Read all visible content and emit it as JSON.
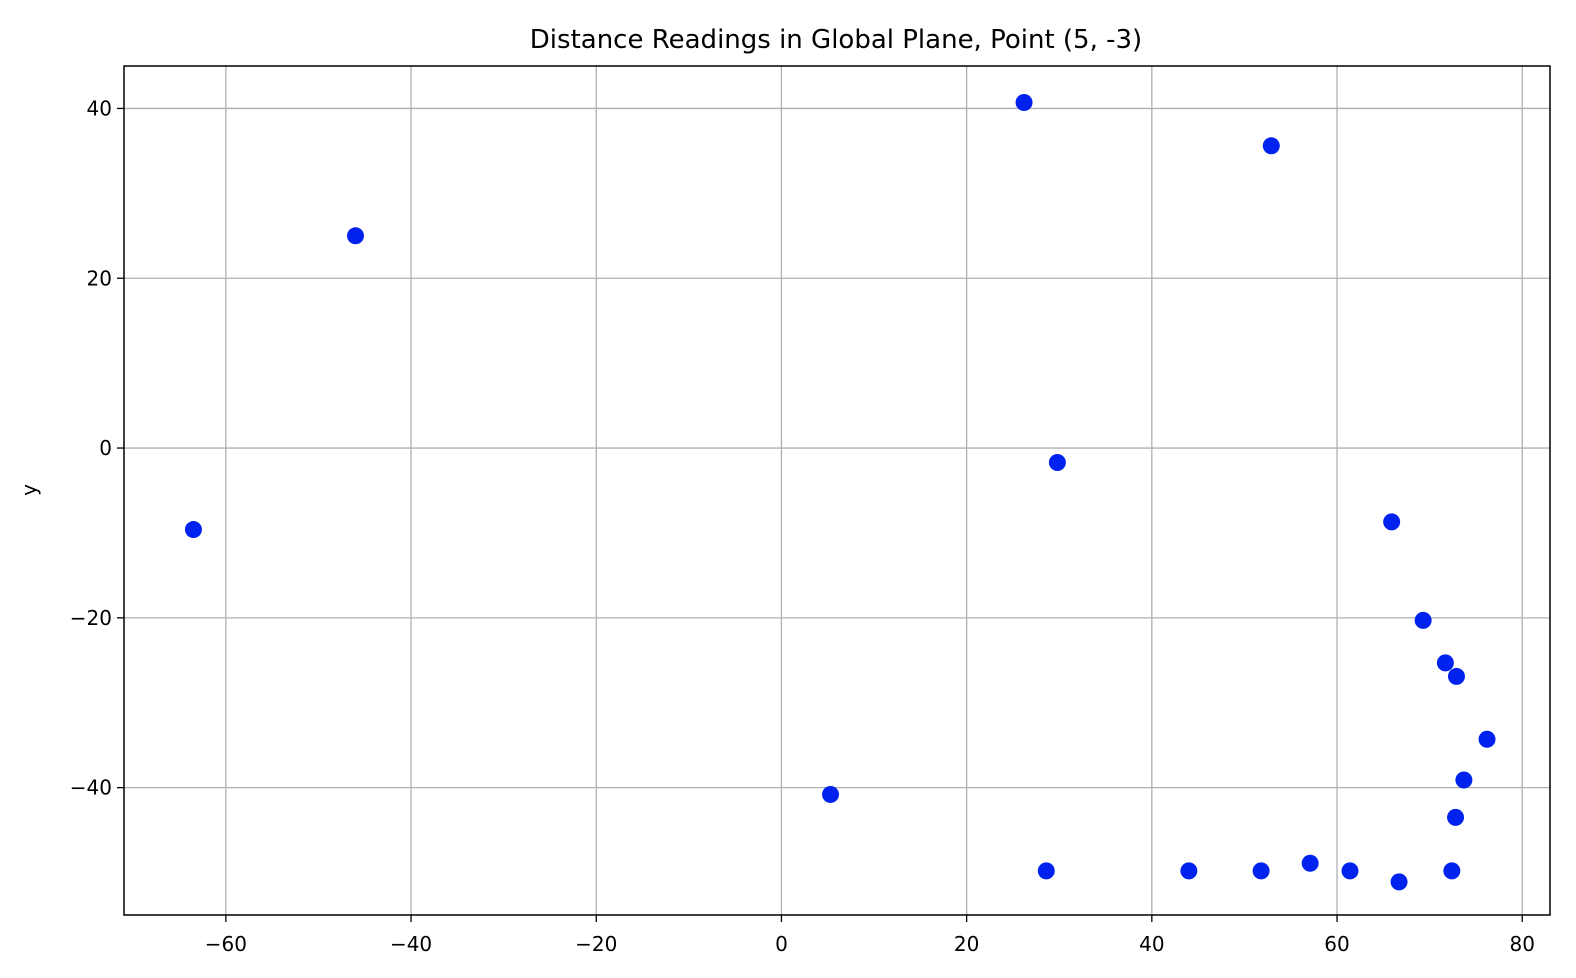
{
  "chart_data": {
    "type": "scatter",
    "title": "Distance Readings in Global Plane, Point (5, -3)",
    "xlabel": "",
    "ylabel": "y",
    "xlim": [
      -71,
      83
    ],
    "ylim": [
      -55,
      45
    ],
    "xticks": [
      -60,
      -40,
      -20,
      0,
      20,
      40,
      60,
      80
    ],
    "yticks": [
      -40,
      -20,
      0,
      20,
      40
    ],
    "grid": true,
    "marker_color": "#0022ee",
    "points": [
      {
        "x": -63.5,
        "y": -9.6
      },
      {
        "x": -46.0,
        "y": 25.0
      },
      {
        "x": 5.3,
        "y": -40.8
      },
      {
        "x": 26.2,
        "y": 40.7
      },
      {
        "x": 28.6,
        "y": -49.8
      },
      {
        "x": 29.8,
        "y": -1.7
      },
      {
        "x": 44.0,
        "y": -49.8
      },
      {
        "x": 51.8,
        "y": -49.8
      },
      {
        "x": 52.9,
        "y": 35.6
      },
      {
        "x": 57.1,
        "y": -48.9
      },
      {
        "x": 61.4,
        "y": -49.8
      },
      {
        "x": 65.9,
        "y": -8.7
      },
      {
        "x": 66.7,
        "y": -51.1
      },
      {
        "x": 69.3,
        "y": -20.3
      },
      {
        "x": 71.7,
        "y": -25.3
      },
      {
        "x": 72.4,
        "y": -49.8
      },
      {
        "x": 72.8,
        "y": -43.5
      },
      {
        "x": 72.9,
        "y": -26.9
      },
      {
        "x": 73.7,
        "y": -39.1
      },
      {
        "x": 76.2,
        "y": -34.3
      }
    ]
  }
}
